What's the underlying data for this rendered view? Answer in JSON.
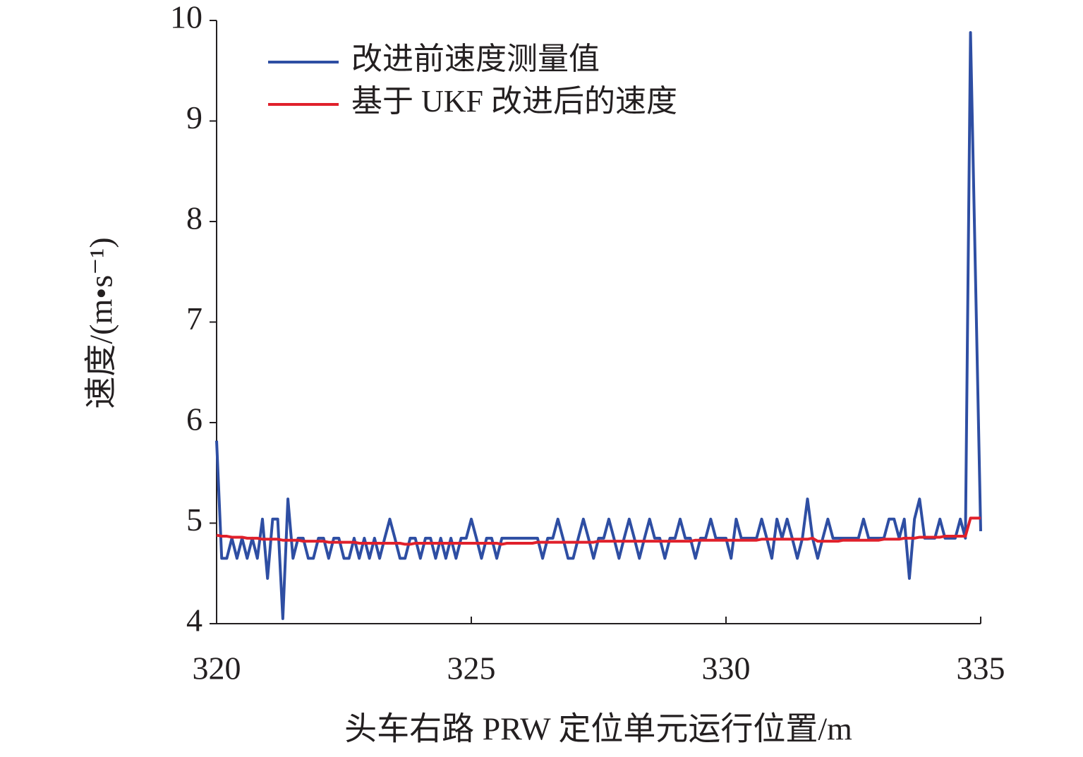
{
  "chart_data": {
    "type": "line",
    "x_label": "头车右路 PRW 定位单元运行位置/m",
    "y_label": "速度/(m•s⁻¹)",
    "x": [
      320,
      320.1,
      320.2,
      320.3,
      320.4,
      320.5,
      320.6,
      320.7,
      320.8,
      320.9,
      321,
      321.1,
      321.2,
      321.3,
      321.4,
      321.5,
      321.6,
      321.7,
      321.8,
      321.9,
      322,
      322.1,
      322.2,
      322.3,
      322.4,
      322.5,
      322.6,
      322.7,
      322.8,
      322.9,
      323,
      323.1,
      323.2,
      323.3,
      323.4,
      323.5,
      323.6,
      323.7,
      323.8,
      323.9,
      324,
      324.1,
      324.2,
      324.3,
      324.4,
      324.5,
      324.6,
      324.7,
      324.8,
      324.9,
      325,
      325.1,
      325.2,
      325.3,
      325.4,
      325.5,
      325.6,
      325.7,
      325.8,
      325.9,
      326,
      326.1,
      326.2,
      326.3,
      326.4,
      326.5,
      326.6,
      326.7,
      326.8,
      326.9,
      327,
      327.1,
      327.2,
      327.3,
      327.4,
      327.5,
      327.6,
      327.7,
      327.8,
      327.9,
      328,
      328.1,
      328.2,
      328.3,
      328.4,
      328.5,
      328.6,
      328.7,
      328.8,
      328.9,
      329,
      329.1,
      329.2,
      329.3,
      329.4,
      329.5,
      329.6,
      329.7,
      329.8,
      329.9,
      330,
      330.1,
      330.2,
      330.3,
      330.4,
      330.5,
      330.6,
      330.7,
      330.8,
      330.9,
      331,
      331.1,
      331.2,
      331.3,
      331.4,
      331.5,
      331.6,
      331.7,
      331.8,
      331.9,
      332,
      332.1,
      332.2,
      332.3,
      332.4,
      332.5,
      332.6,
      332.7,
      332.8,
      332.9,
      333,
      333.1,
      333.2,
      333.3,
      333.4,
      333.5,
      333.6,
      333.7,
      333.8,
      333.9,
      334,
      334.1,
      334.2,
      334.3,
      334.4,
      334.5,
      334.6,
      334.7,
      334.8,
      334.9,
      335
    ],
    "series": [
      {
        "name": "改进前速度测量值",
        "color": "#2e4ea3",
        "values": [
          5.82,
          4.65,
          4.65,
          4.85,
          4.65,
          4.85,
          4.65,
          4.85,
          4.65,
          5.04,
          4.45,
          5.04,
          5.04,
          4.05,
          5.24,
          4.65,
          4.85,
          4.85,
          4.65,
          4.65,
          4.85,
          4.85,
          4.65,
          4.85,
          4.85,
          4.65,
          4.65,
          4.85,
          4.65,
          4.85,
          4.65,
          4.85,
          4.65,
          4.85,
          5.04,
          4.85,
          4.65,
          4.65,
          4.85,
          4.85,
          4.65,
          4.85,
          4.85,
          4.65,
          4.85,
          4.65,
          4.85,
          4.65,
          4.85,
          4.85,
          5.04,
          4.85,
          4.65,
          4.85,
          4.85,
          4.65,
          4.85,
          4.85,
          4.85,
          4.85,
          4.85,
          4.85,
          4.85,
          4.85,
          4.65,
          4.85,
          4.85,
          5.04,
          4.85,
          4.65,
          4.65,
          4.85,
          5.04,
          4.85,
          4.65,
          4.85,
          4.85,
          5.04,
          4.85,
          4.65,
          4.85,
          5.04,
          4.85,
          4.65,
          4.85,
          5.04,
          4.85,
          4.85,
          4.65,
          4.85,
          4.85,
          5.04,
          4.85,
          4.85,
          4.65,
          4.85,
          4.85,
          5.04,
          4.85,
          4.85,
          4.85,
          4.65,
          5.04,
          4.85,
          4.85,
          4.85,
          4.85,
          5.04,
          4.85,
          4.65,
          5.04,
          4.85,
          5.04,
          4.85,
          4.65,
          4.85,
          5.24,
          4.85,
          4.65,
          4.85,
          5.04,
          4.85,
          4.85,
          4.85,
          4.85,
          4.85,
          4.85,
          5.04,
          4.85,
          4.85,
          4.85,
          4.85,
          5.04,
          5.04,
          4.85,
          5.04,
          4.45,
          5.04,
          5.24,
          4.85,
          4.85,
          4.85,
          5.04,
          4.85,
          4.85,
          4.85,
          5.04,
          4.85,
          9.88,
          7.4,
          4.92
        ]
      },
      {
        "name": "基于 UKF 改进后的速度",
        "color": "#e0202b",
        "values": [
          4.88,
          4.87,
          4.87,
          4.86,
          4.86,
          4.86,
          4.85,
          4.85,
          4.85,
          4.84,
          4.84,
          4.84,
          4.84,
          4.83,
          4.83,
          4.83,
          4.83,
          4.82,
          4.82,
          4.82,
          4.82,
          4.82,
          4.81,
          4.81,
          4.81,
          4.81,
          4.81,
          4.81,
          4.8,
          4.8,
          4.8,
          4.8,
          4.8,
          4.8,
          4.8,
          4.8,
          4.8,
          4.79,
          4.79,
          4.8,
          4.8,
          4.8,
          4.8,
          4.8,
          4.8,
          4.8,
          4.8,
          4.8,
          4.8,
          4.8,
          4.8,
          4.8,
          4.8,
          4.8,
          4.8,
          4.8,
          4.79,
          4.8,
          4.8,
          4.8,
          4.8,
          4.8,
          4.8,
          4.81,
          4.81,
          4.81,
          4.81,
          4.81,
          4.81,
          4.81,
          4.81,
          4.81,
          4.81,
          4.81,
          4.81,
          4.82,
          4.82,
          4.82,
          4.82,
          4.82,
          4.82,
          4.82,
          4.82,
          4.82,
          4.82,
          4.82,
          4.82,
          4.82,
          4.82,
          4.82,
          4.82,
          4.82,
          4.82,
          4.82,
          4.83,
          4.83,
          4.83,
          4.83,
          4.83,
          4.83,
          4.83,
          4.83,
          4.83,
          4.83,
          4.83,
          4.83,
          4.83,
          4.84,
          4.84,
          4.84,
          4.84,
          4.84,
          4.84,
          4.84,
          4.84,
          4.84,
          4.84,
          4.85,
          4.82,
          4.82,
          4.82,
          4.82,
          4.82,
          4.83,
          4.83,
          4.83,
          4.83,
          4.83,
          4.83,
          4.83,
          4.83,
          4.84,
          4.84,
          4.84,
          4.84,
          4.85,
          4.85,
          4.85,
          4.86,
          4.86,
          4.86,
          4.86,
          4.86,
          4.87,
          4.87,
          4.87,
          4.87,
          4.87,
          5.05,
          5.05,
          5.05
        ]
      }
    ],
    "xlim": [
      320,
      335
    ],
    "xticks": [
      320,
      325,
      330,
      335
    ],
    "ylim": [
      4,
      10
    ],
    "yticks": [
      4,
      5,
      6,
      7,
      8,
      9,
      10
    ],
    "legend": "upper left",
    "grid": false
  }
}
